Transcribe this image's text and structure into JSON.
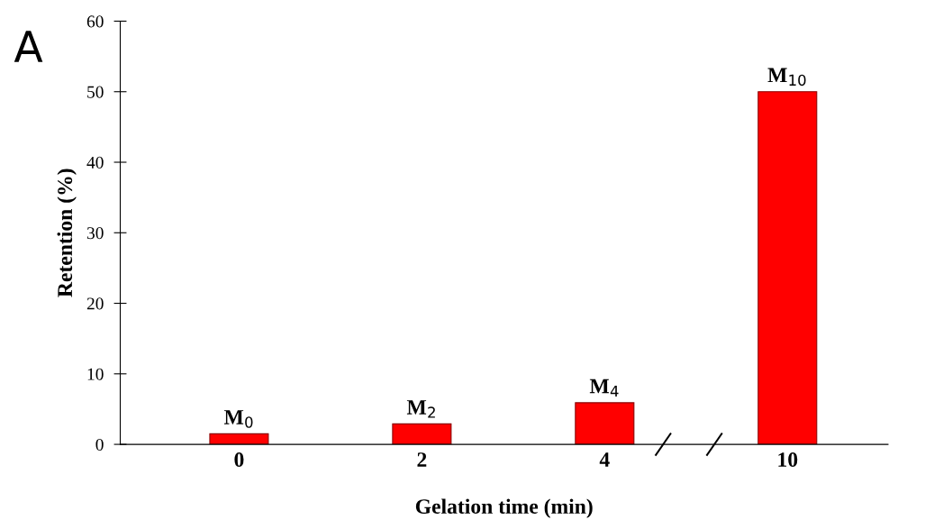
{
  "chart_data": {
    "type": "bar",
    "categories": [
      "0",
      "2",
      "4",
      "10"
    ],
    "values": [
      1.5,
      2.9,
      5.9,
      50.0
    ],
    "color": "#ff0000",
    "xlabel": "Gelation time (min)",
    "ylabel": "Retention (%)",
    "ylim": [
      0,
      60
    ],
    "yticks": [
      0,
      10,
      20,
      30,
      40,
      50,
      60
    ],
    "annotations": [
      "A",
      {
        "text": "M$_{0}$",
        "x": "0",
        "y": 1.5
      },
      {
        "text": "M$_{2}$",
        "x": "2",
        "y": 2.9
      },
      {
        "text": "M$_{4}$",
        "x": "4",
        "y": 5.9
      },
      {
        "text": "M$_{10}$",
        "x": "10",
        "y": 50.0
      }
    ],
    "grid": false,
    "legend": false
  }
}
